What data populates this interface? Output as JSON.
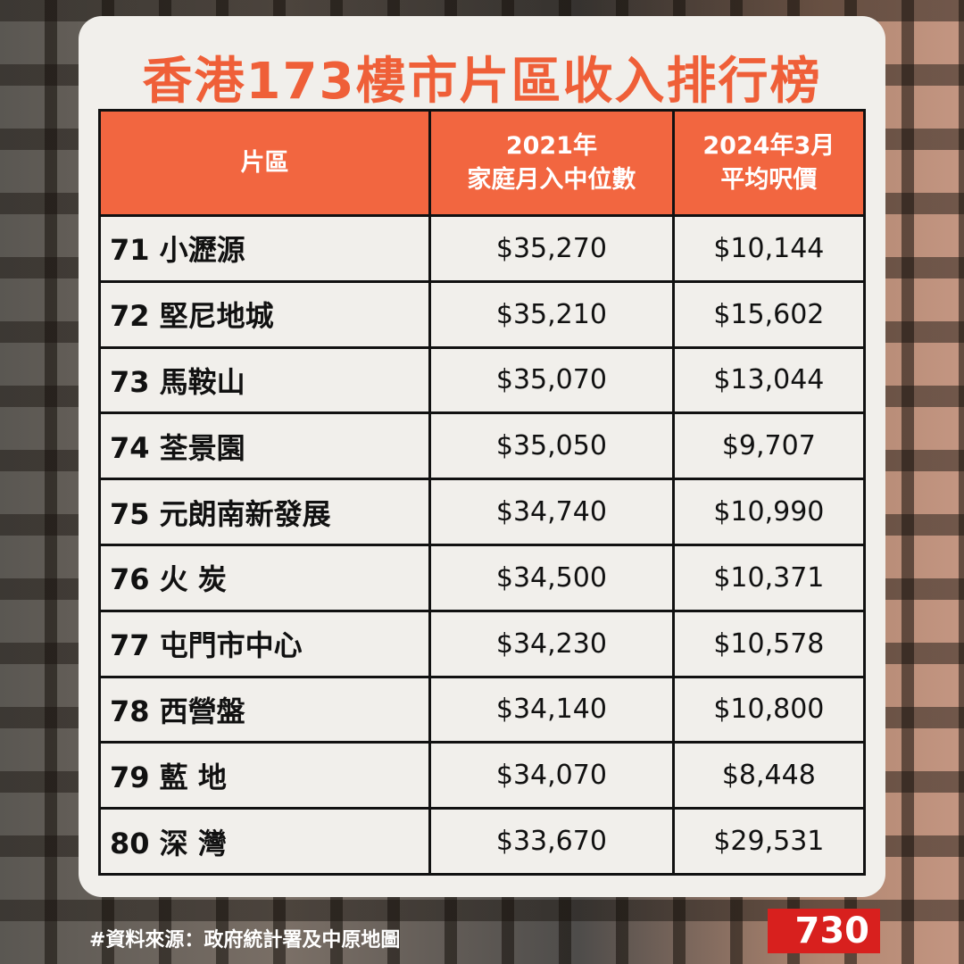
{
  "title": "香港173樓市片區收入排行榜",
  "table": {
    "header": [
      [
        "片區"
      ],
      [
        "2021年",
        "家庭月入中位數"
      ],
      [
        "2024年3月",
        "平均呎價"
      ]
    ],
    "rows": [
      [
        "71 小瀝源",
        "$35,270",
        "$10,144"
      ],
      [
        "72 堅尼地城",
        "$35,210",
        "$15,602"
      ],
      [
        "73 馬鞍山",
        "$35,070",
        "$13,044"
      ],
      [
        "74 荃景園",
        "$35,050",
        "$9,707"
      ],
      [
        "75 元朗南新發展",
        "$34,740",
        "$10,990"
      ],
      [
        "76 火 炭",
        "$34,500",
        "$10,371"
      ],
      [
        "77 屯門市中心",
        "$34,230",
        "$10,578"
      ],
      [
        "78 西營盤",
        "$34,140",
        "$10,800"
      ],
      [
        "79 藍 地",
        "$34,070",
        "$8,448"
      ],
      [
        "80 深 灣",
        "$33,670",
        "$29,531"
      ]
    ]
  },
  "footer": {
    "source": "#資料來源：政府統計署及中原地圖",
    "logo": "730"
  }
}
